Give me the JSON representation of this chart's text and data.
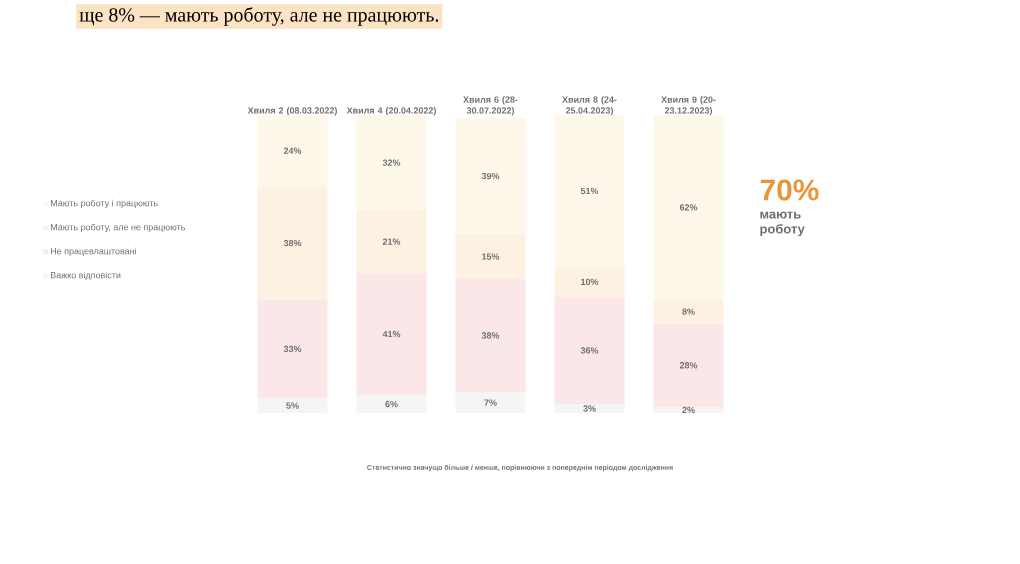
{
  "chart_data": {
    "type": "bar",
    "stacked": true,
    "title": "ще 8% — мають роботу, але не працюють.",
    "categories": [
      "Хвиля 2 (08.03.2022)",
      "Хвиля 4 (20.04.2022)",
      "Хвиля 6 (28-30.07.2022)",
      "Хвиля 8 (24-25.04.2023)",
      "Хвиля 9 (20-23.12.2023)"
    ],
    "series": [
      {
        "name": "Важко відповісти",
        "color": "#f5f5f5",
        "values": [
          5,
          6,
          7,
          3,
          2
        ],
        "value_labels": [
          "5%",
          "6%",
          "7%",
          "3%",
          "2%"
        ]
      },
      {
        "name": "Не працевлаштовані",
        "color": "#fbe6e8",
        "values": [
          33,
          41,
          38,
          36,
          28
        ],
        "value_labels": [
          "33%",
          "41%",
          "38%",
          "36%",
          "28%"
        ]
      },
      {
        "name": "Мають роботу, але не працюють",
        "color": "#fdf1e2",
        "values": [
          38,
          21,
          15,
          10,
          8
        ],
        "value_labels": [
          "38%",
          "21%",
          "15%",
          "10%",
          "8%"
        ]
      },
      {
        "name": "Мають роботу і працюють",
        "color": "#fef8ea",
        "values": [
          24,
          32,
          39,
          51,
          62
        ],
        "value_labels": [
          "24%",
          "32%",
          "39%",
          "51%",
          "62%"
        ]
      }
    ],
    "legend": "left",
    "annotations": [
      "70%",
      "мають роботу",
      "Статистично значущо більше / менше, порівнюючи з попереднім періодом дослідження"
    ]
  }
}
